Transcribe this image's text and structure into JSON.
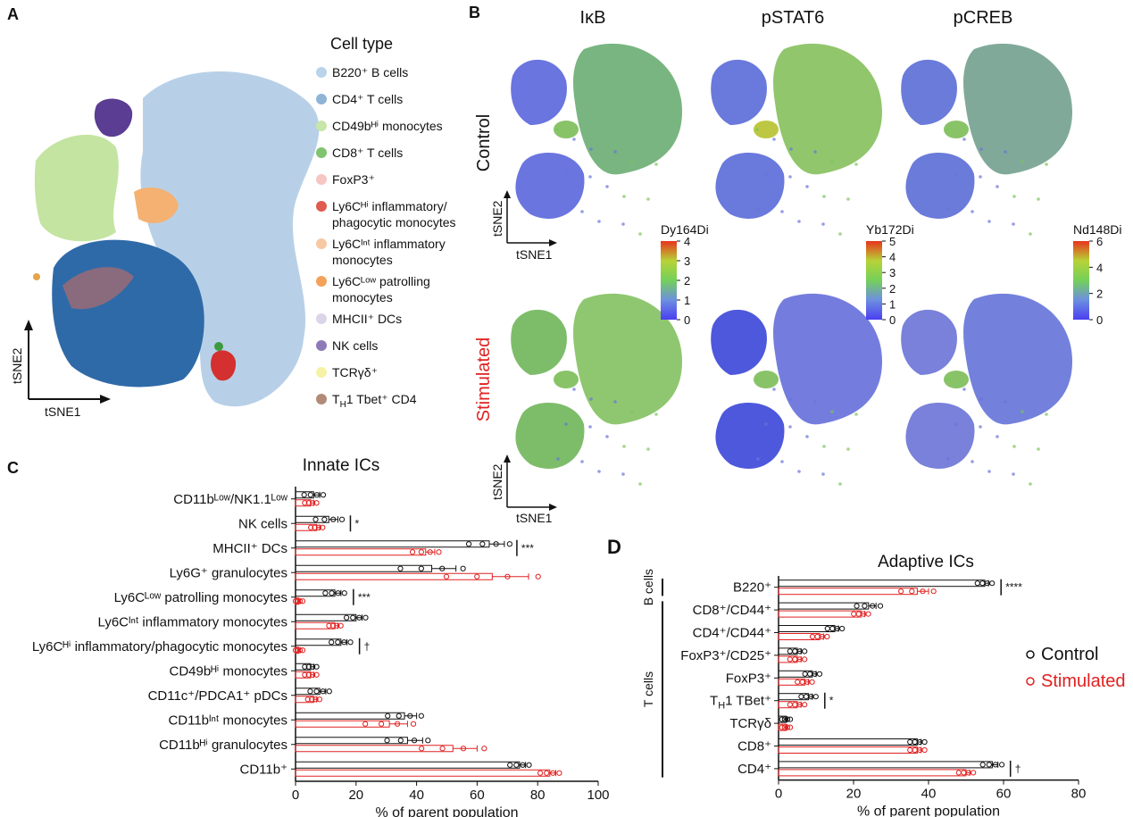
{
  "panels": {
    "A": {
      "letter": "A",
      "legend_title": "Cell type",
      "legend": [
        {
          "label": "B220⁺ B cells",
          "color": "#b9d3ea"
        },
        {
          "label": "CD4⁺ T cells",
          "color": "#8fb4d6"
        },
        {
          "label": "CD49bᴴⁱ monocytes",
          "color": "#c7e6a8"
        },
        {
          "label": "CD8⁺ T cells",
          "color": "#7fc46f"
        },
        {
          "label": "FoxP3⁺",
          "color": "#f6c6c3"
        },
        {
          "label": "Ly6Cᴴⁱ inflammatory/",
          "color": "#e05a4f",
          "label2": "phagocytic monocytes"
        },
        {
          "label": "Ly6Cᴵⁿᵗ inflammatory",
          "color": "#f7c8a3",
          "label2": "monocytes"
        },
        {
          "label": "Ly6Cᴸᵒʷ patrolling",
          "color": "#f3a25a",
          "label2": "monocytes"
        },
        {
          "label": "MHCII⁺ DCs",
          "color": "#dcd5e8"
        },
        {
          "label": "NK cells",
          "color": "#8e79b8"
        },
        {
          "label": "TCRγδ⁺",
          "color": "#f6f2a5"
        },
        {
          "label": "T",
          "sub": "H",
          "label_rest": "1 Tbet⁺ CD4",
          "color": "#b28b78"
        }
      ],
      "axis_x": "tSNE1",
      "axis_y": "tSNE2"
    },
    "B": {
      "letter": "B",
      "columns": [
        "IκB",
        "pSTAT6",
        "pCREB"
      ],
      "rows": [
        "Control",
        "Stimulated"
      ],
      "axis_x": "tSNE1",
      "axis_y": "tSNE2",
      "colorbars": [
        {
          "title": "Dy164Di",
          "ticks": [
            "4",
            "3",
            "2",
            "1",
            "0"
          ]
        },
        {
          "title": "Yb172Di",
          "ticks": [
            "5",
            "4",
            "3",
            "2",
            "1",
            "0"
          ]
        },
        {
          "title": "Nd148Di",
          "ticks": [
            "6",
            "4",
            "2",
            "0"
          ]
        }
      ]
    },
    "C": {
      "letter": "C"
    },
    "D": {
      "letter": "D"
    }
  },
  "chart_data": [
    {
      "type": "bar",
      "title": "Innate ICs",
      "xlabel": "% of parent population",
      "xlim": [
        0,
        100
      ],
      "xticks": [
        "0",
        "20",
        "40",
        "60",
        "80",
        "100"
      ],
      "categories": [
        "CD11bᴸᵒʷ/NK1.1ᴸᵒʷ",
        "NK cells",
        "MHCII⁺ DCs",
        "Ly6G⁺ granulocytes",
        "Ly6Cᴸᵒʷ patrolling monocytes",
        "Ly6Cᴵⁿᵗ inflammatory monocytes",
        "Ly6Cᴴⁱ inflammatory/phagocytic monocytes",
        "CD49bᴴⁱ monocytes",
        "CD11c⁺/PDCA1⁺ pDCs",
        "CD11bᴵⁿᵗ monocytes",
        "CD11bᴴⁱ granulocytes",
        "CD11b⁺"
      ],
      "series": [
        {
          "name": "Control",
          "color": "#111111",
          "values": [
            6,
            11,
            64,
            45,
            13,
            20,
            15,
            5,
            8,
            36,
            37,
            74
          ],
          "err": [
            2,
            3,
            5,
            8,
            2,
            2,
            2,
            1,
            2,
            4,
            5,
            2
          ]
        },
        {
          "name": "Stimulated",
          "color": "#e02020",
          "values": [
            5,
            7,
            43,
            65,
            1,
            13,
            1,
            5,
            6,
            31,
            52,
            84
          ],
          "err": [
            1,
            1,
            3,
            12,
            0.5,
            1,
            0.5,
            1,
            1,
            6,
            8,
            2
          ]
        }
      ],
      "significance": [
        "",
        "*",
        "***",
        "",
        "***",
        "",
        "†",
        "",
        "",
        "",
        "",
        ""
      ]
    },
    {
      "type": "bar",
      "title": "Adaptive ICs",
      "xlabel": "% of parent population",
      "xlim": [
        0,
        80
      ],
      "xticks": [
        "0",
        "20",
        "40",
        "60",
        "80"
      ],
      "categories": [
        "B220⁺",
        "CD8⁺/CD44⁺",
        "CD4⁺/CD44⁺",
        "FoxP3⁺/CD25⁺",
        "FoxP3⁺",
        "T_H1 TBet⁺",
        "TCRγδ",
        "CD8⁺",
        "CD4⁺"
      ],
      "groups": [
        {
          "label": "B cells",
          "rows": [
            0
          ]
        },
        {
          "label": "T cells",
          "rows": [
            1,
            2,
            3,
            4,
            5,
            6,
            7,
            8
          ]
        }
      ],
      "series": [
        {
          "name": "Control",
          "color": "#111111",
          "values": [
            55,
            24,
            15,
            5,
            9,
            8,
            2,
            37,
            57
          ],
          "err": [
            1,
            2,
            1,
            1,
            1,
            1,
            0.3,
            1,
            1.5
          ]
        },
        {
          "name": "Stimulated",
          "color": "#e02020",
          "values": [
            37,
            22,
            11,
            5,
            7,
            5,
            2,
            37,
            50
          ],
          "err": [
            3,
            1,
            1,
            1,
            1,
            1,
            0.3,
            1,
            1
          ]
        }
      ],
      "significance": [
        "****",
        "",
        "",
        "",
        "",
        "*",
        "",
        "",
        "†"
      ],
      "legend": [
        "Control",
        "Stimulated"
      ]
    }
  ]
}
